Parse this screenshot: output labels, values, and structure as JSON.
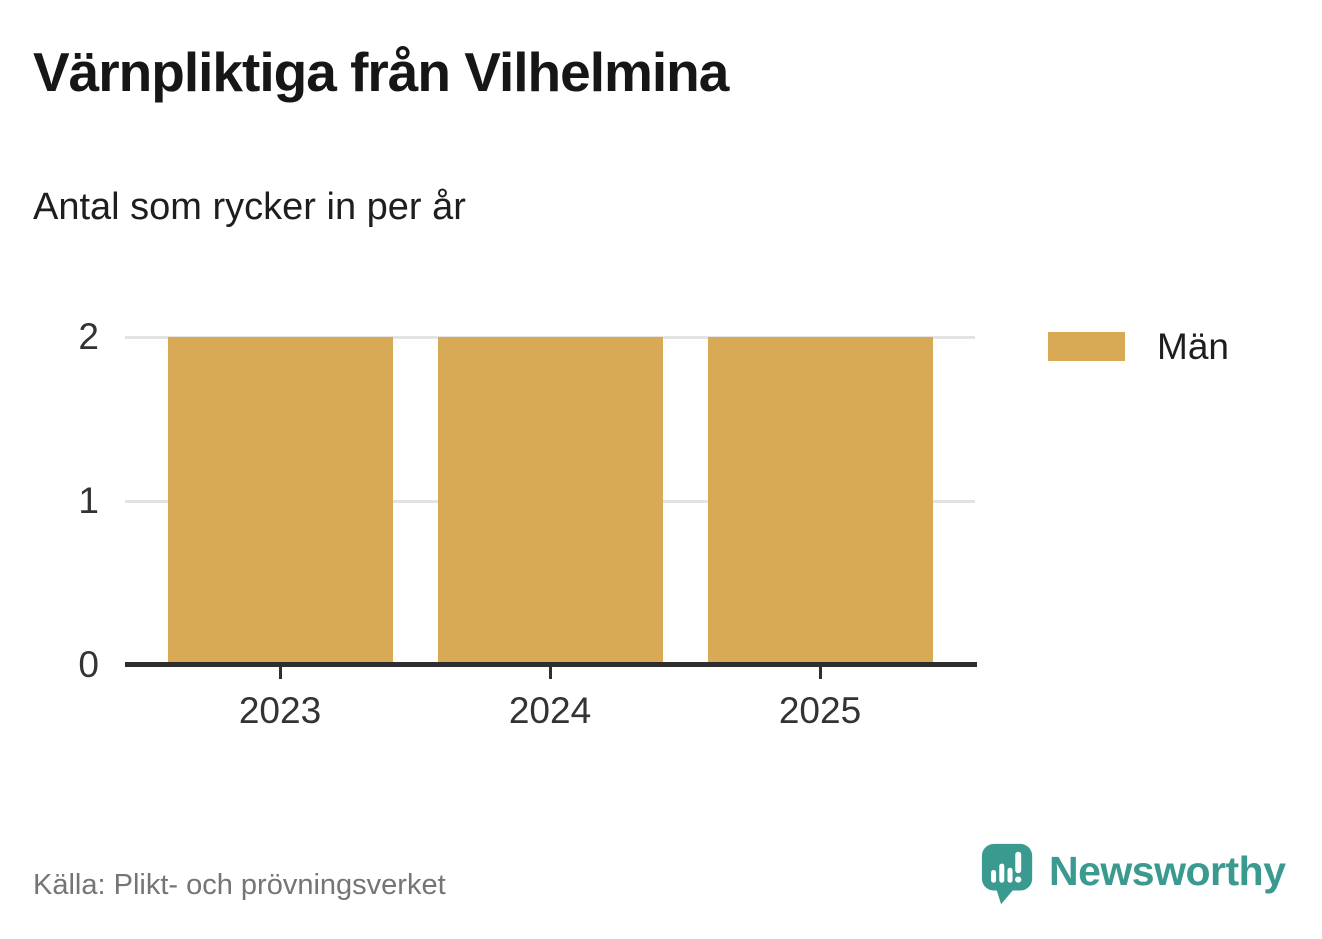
{
  "header": {
    "title": "Värnpliktiga från Vilhelmina",
    "subtitle": "Antal som rycker in per år"
  },
  "chart_data": {
    "type": "bar",
    "title": "Värnpliktiga från Vilhelmina",
    "subtitle": "Antal som rycker in per år",
    "categories": [
      "2023",
      "2024",
      "2025"
    ],
    "series": [
      {
        "name": "Män",
        "color": "#d9aa55",
        "values": [
          2,
          2,
          2
        ]
      }
    ],
    "ylim": [
      0,
      2
    ],
    "yticks": [
      0,
      1,
      2
    ],
    "xlabel": "",
    "ylabel": "",
    "grid": "horizontal-light",
    "legend_position": "right",
    "colors": {
      "gridline": "#e3e3e3",
      "axis": "#2e2e2e",
      "tick_label": "#333333"
    }
  },
  "legend": {
    "items": [
      {
        "label": "Män",
        "color": "#d9aa55"
      }
    ]
  },
  "footer": {
    "source": "Källa: Plikt- och prövningsverket"
  },
  "branding": {
    "name": "Newsworthy",
    "color": "#3a9a8f",
    "icon": "newsworthy-speech-bubble-barchart-icon"
  }
}
